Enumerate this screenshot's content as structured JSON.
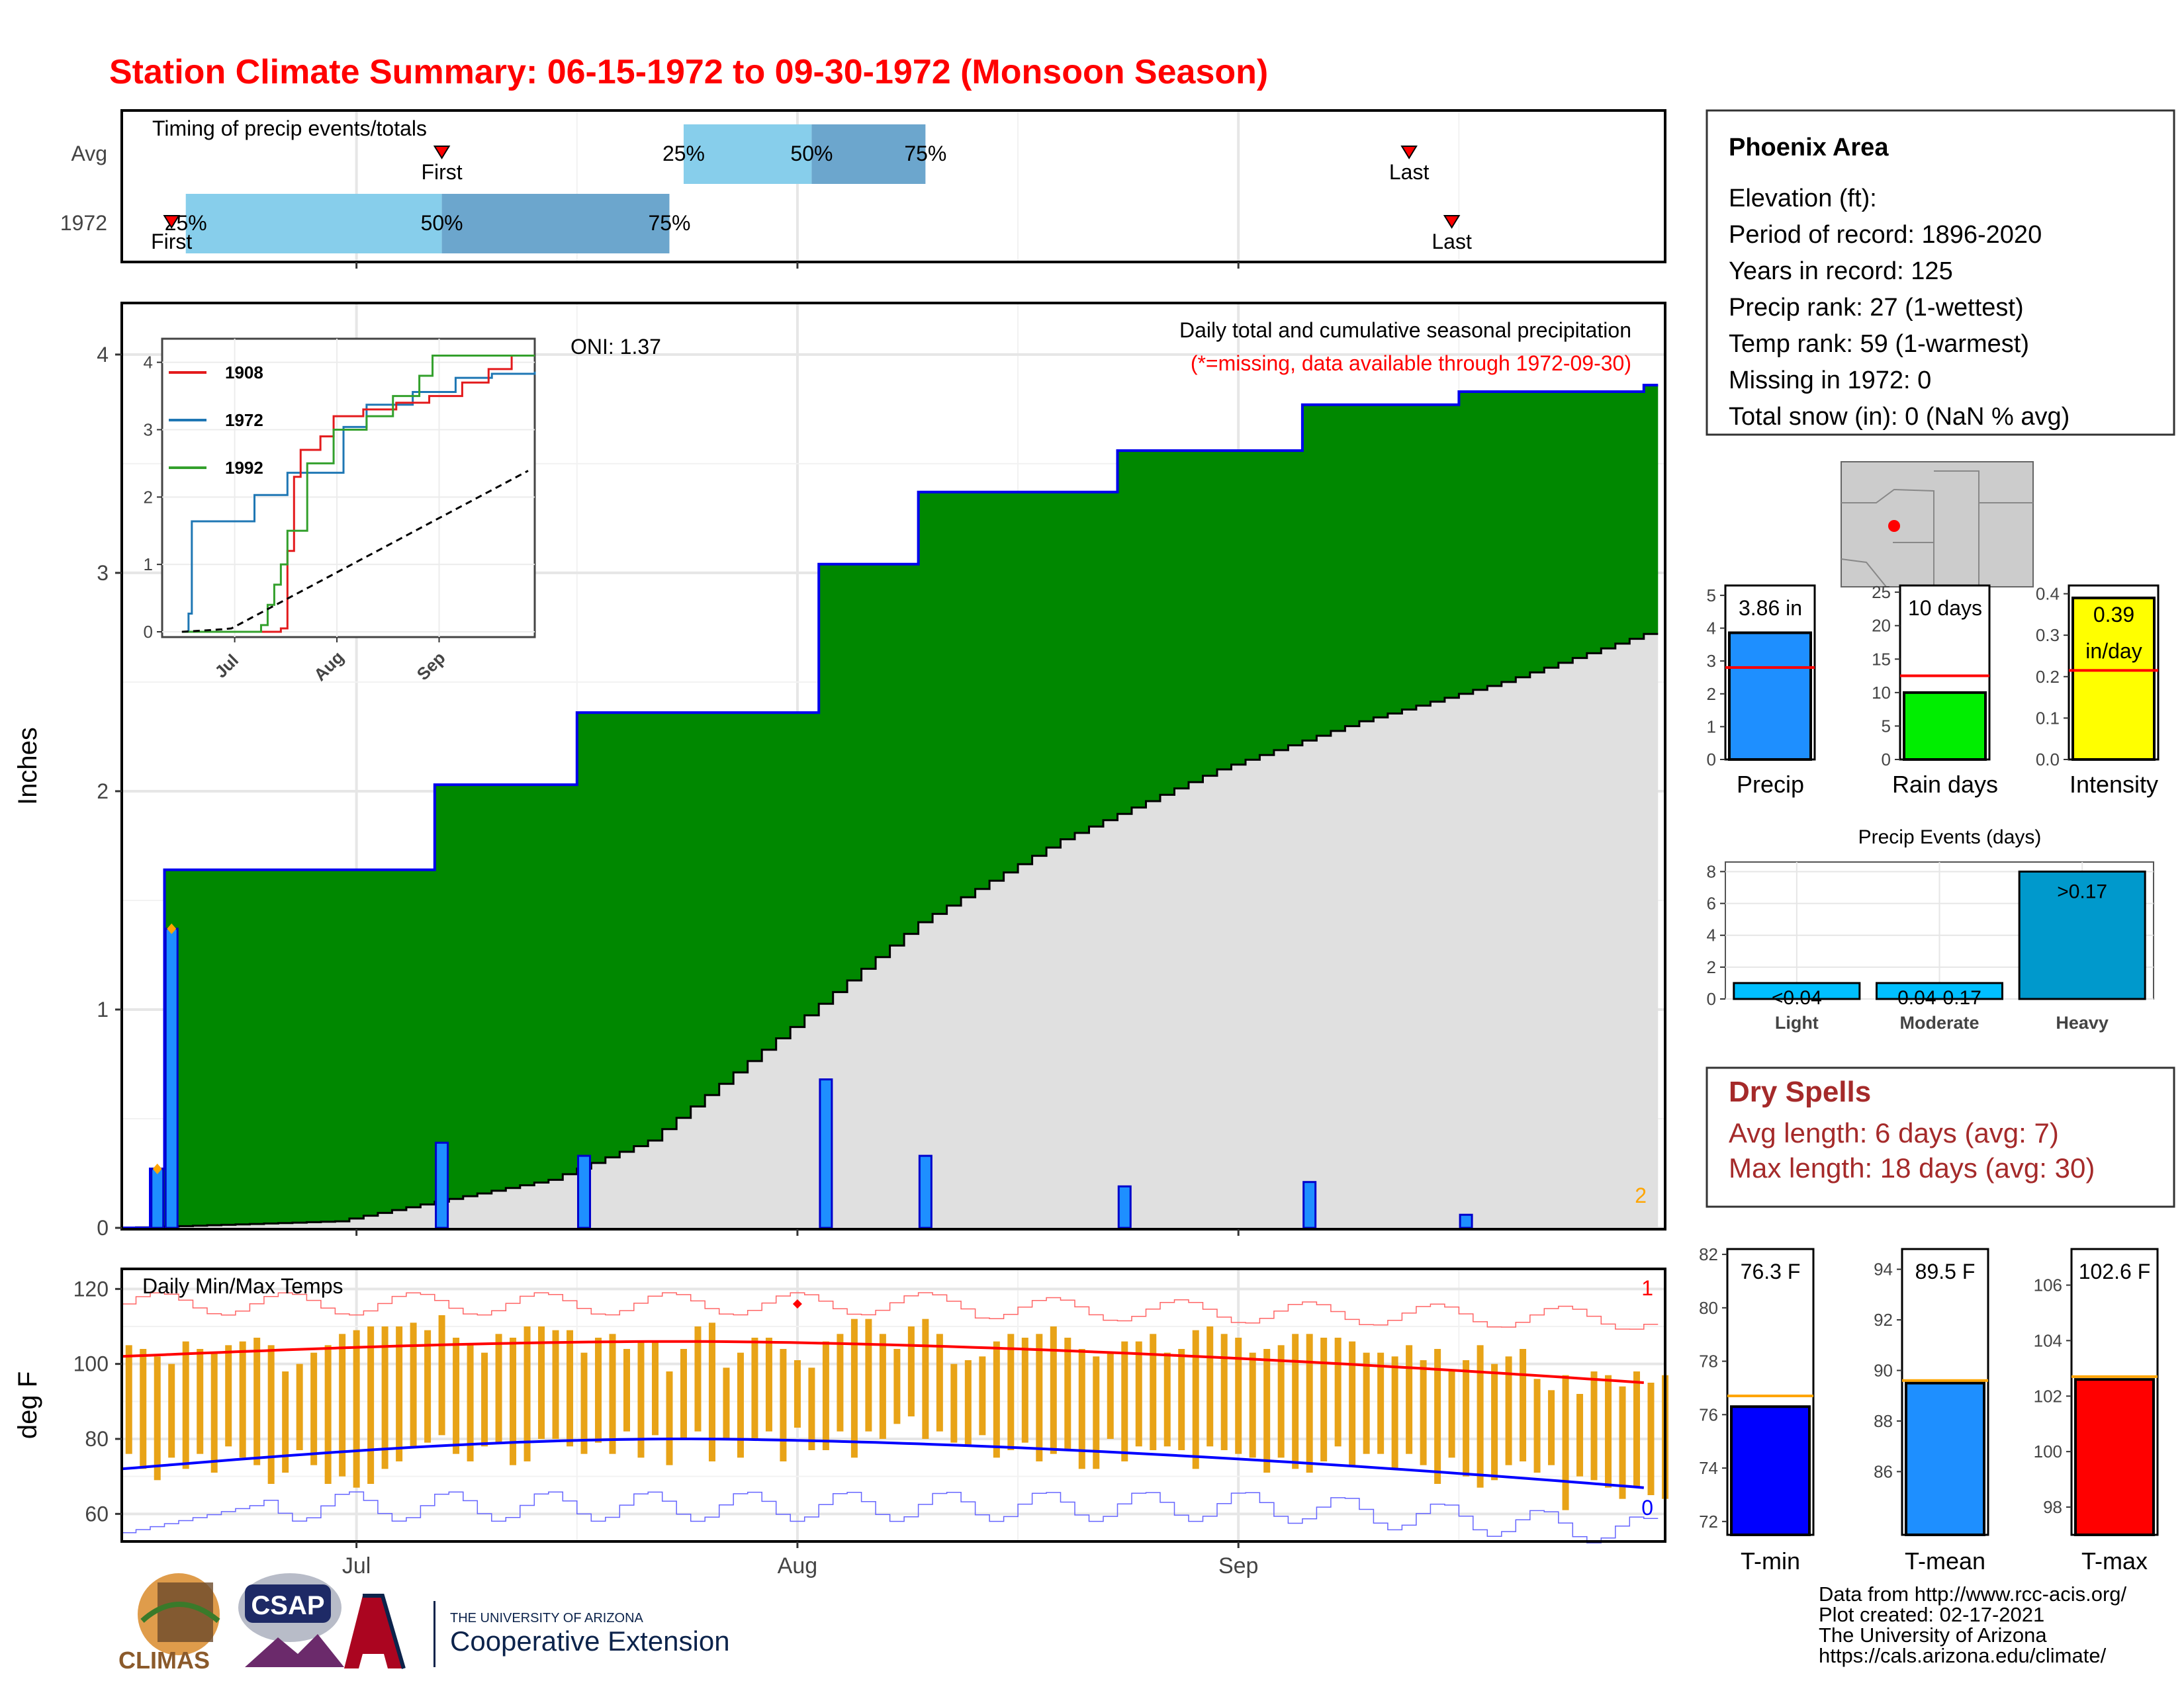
{
  "title": "Station Climate Summary: 06-15-1972 to 09-30-1972 (Monsoon Season)",
  "colors": {
    "title_red": "#ff0000",
    "green_fill": "#008800",
    "blue_line": "#0000ee",
    "bar_blue": "#1e8fff",
    "light_blue": "#87ceeb",
    "mid_blue": "#6ca6cd",
    "gray_fill": "#e0e0e0",
    "orange": "#ffa500",
    "gold_bar": "#e8a317",
    "yellow": "#ffff00",
    "green_bar": "#00ee00",
    "teal_bar": "#0099cc",
    "cyan_bar": "#00bfff",
    "dark_red_text": "#a52a2a"
  },
  "timing": {
    "title": "Timing of precip events/totals",
    "row_labels": [
      "Avg",
      "1972"
    ],
    "avg": {
      "first": "07-07",
      "p25": "07-24",
      "p50": "08-02",
      "p75": "08-10",
      "last": "09-13"
    },
    "year": {
      "first": "06-18",
      "p25": "06-19",
      "p50": "07-07",
      "p75": "07-23",
      "last": "09-16"
    },
    "labels": {
      "first": "First",
      "last": "Last",
      "p25": "25%",
      "p50": "50%",
      "p75": "75%"
    }
  },
  "main_chart": {
    "ylabel": "Inches",
    "subtitle1": "Daily total and cumulative seasonal precipitation",
    "subtitle2": "(*=missing, data available through 1972-09-30)",
    "oni": "ONI: 1.37",
    "count_label": "2",
    "yticks": [
      "0",
      "1",
      "2",
      "3",
      "4"
    ],
    "xticks": [
      "Jul",
      "Aug",
      "Sep"
    ]
  },
  "inset": {
    "legend": [
      "1908",
      "1972",
      "1992"
    ],
    "yticks": [
      "0",
      "1",
      "2",
      "3",
      "4"
    ],
    "xticks": [
      "Jul",
      "Aug",
      "Sep"
    ]
  },
  "temp_chart": {
    "ylabel": "deg F",
    "title": "Daily Min/Max Temps",
    "yticks": [
      "60",
      "80",
      "100",
      "120"
    ],
    "count_high": "1",
    "count_low": "0"
  },
  "info_box": {
    "name": "Phoenix Area",
    "lines": [
      "Elevation (ft):",
      "Period of record: 1896-2020",
      "Years in record: 125",
      "Precip rank: 27 (1-wettest)",
      "Temp rank: 59 (1-warmest)",
      "Missing in 1972: 0",
      "Total snow (in): 0 (NaN % avg)"
    ]
  },
  "mini_bars": [
    {
      "label": "Precip",
      "value_text": "3.86 in",
      "value": 3.86,
      "avg": 2.8,
      "ymax": 5.3,
      "yticks": [
        "0",
        "1",
        "2",
        "3",
        "4",
        "5"
      ],
      "tickvals": [
        0,
        1,
        2,
        3,
        4,
        5
      ],
      "color": "#1e8fff"
    },
    {
      "label": "Rain days",
      "value_text": "10 days",
      "value": 10,
      "avg": 12.5,
      "ymax": 26,
      "yticks": [
        "0",
        "5",
        "10",
        "15",
        "20",
        "25"
      ],
      "tickvals": [
        0,
        5,
        10,
        15,
        20,
        25
      ],
      "color": "#00ee00"
    },
    {
      "label": "Intensity",
      "value_text": "0.39 in/day",
      "value_line1": "0.39",
      "value_line2": "in/day",
      "value": 0.39,
      "avg": 0.215,
      "ymax": 0.42,
      "yticks": [
        "0.0",
        "0.1",
        "0.2",
        "0.3",
        "0.4"
      ],
      "tickvals": [
        0,
        0.1,
        0.2,
        0.3,
        0.4
      ],
      "color": "#ffff00"
    }
  ],
  "precip_events": {
    "title": "Precip Events (days)",
    "categories": [
      "Light",
      "Moderate",
      "Heavy"
    ],
    "values": [
      1,
      1,
      8
    ],
    "labels": [
      "<0.04",
      "0.04-0.17",
      ">0.17"
    ],
    "yticks": [
      "0",
      "2",
      "4",
      "6",
      "8"
    ]
  },
  "dry_spells": {
    "title": "Dry Spells",
    "avg_line": "Avg length: 6 days (avg: 7)",
    "max_line": "Max length: 18 days (avg: 30)"
  },
  "temp_bars": [
    {
      "label": "T-min",
      "value_text": "76.3 F",
      "value": 76.3,
      "avg": 76.7,
      "ymin": 71.5,
      "ymax": 82.2,
      "tickvals": [
        72,
        74,
        76,
        78,
        80,
        82
      ],
      "yticks": [
        "72",
        "74",
        "76",
        "78",
        "80",
        "82"
      ],
      "color": "#0000ff"
    },
    {
      "label": "T-mean",
      "value_text": "89.5 F",
      "value": 89.5,
      "avg": 89.6,
      "ymin": 83.5,
      "ymax": 94.8,
      "tickvals": [
        86,
        88,
        90,
        92,
        94
      ],
      "yticks": [
        "86",
        "88",
        "90",
        "92",
        "94"
      ],
      "color": "#1e8fff"
    },
    {
      "label": "T-max",
      "value_text": "102.6 F",
      "value": 102.6,
      "avg": 102.7,
      "ymin": 97,
      "ymax": 107.3,
      "tickvals": [
        98,
        100,
        102,
        104,
        106
      ],
      "yticks": [
        "98",
        "100",
        "102",
        "104",
        "106"
      ],
      "color": "#ff0000"
    }
  ],
  "footer": {
    "lines": [
      "Data from http://www.rcc-acis.org/",
      "Plot created: 02-17-2021",
      "The University of Arizona",
      "https://cals.arizona.edu/climate/"
    ],
    "logo_climas": "CLIMAS",
    "logo_csap": "CSAP",
    "logo_ua_small": "THE UNIVERSITY OF ARIZONA",
    "logo_ua_big": "Cooperative Extension"
  },
  "chart_data": {
    "type": "bar",
    "title": "Daily total and cumulative seasonal precipitation",
    "ylabel": "Inches",
    "ylim": [
      0,
      4.2
    ],
    "xlim": [
      "1972-06-15",
      "1972-09-30"
    ],
    "series": [
      {
        "name": "Daily total",
        "x": [
          "1972-06-17",
          "1972-06-18",
          "1972-07-07",
          "1972-07-17",
          "1972-08-03",
          "1972-08-10",
          "1972-08-24",
          "1972-09-06",
          "1972-09-17"
        ],
        "values": [
          0.27,
          1.37,
          0.39,
          0.33,
          0.68,
          0.33,
          0.19,
          0.21,
          0.06
        ]
      },
      {
        "name": "1972 cumulative",
        "x": [
          "1972-06-15",
          "1972-06-17",
          "1972-06-18",
          "1972-07-07",
          "1972-07-17",
          "1972-08-03",
          "1972-08-10",
          "1972-08-24",
          "1972-09-06",
          "1972-09-17",
          "1972-09-30"
        ],
        "values": [
          0,
          0.27,
          1.64,
          2.03,
          2.36,
          3.04,
          3.37,
          3.56,
          3.77,
          3.83,
          3.86
        ]
      },
      {
        "name": "Average cumulative",
        "x": [
          "1972-06-15",
          "1972-06-30",
          "1972-07-07",
          "1972-07-15",
          "1972-07-22",
          "1972-08-01",
          "1972-08-10",
          "1972-08-20",
          "1972-08-31",
          "1972-09-10",
          "1972-09-20",
          "1972-09-30"
        ],
        "values": [
          0,
          0.03,
          0.12,
          0.22,
          0.4,
          0.92,
          1.4,
          1.78,
          2.1,
          2.32,
          2.5,
          2.72
        ]
      }
    ],
    "temps": {
      "ylim": [
        53,
        125
      ],
      "daily_max": [
        105,
        104,
        102,
        100,
        106,
        104,
        103,
        105,
        106,
        107,
        105,
        98,
        100,
        103,
        105,
        108,
        109,
        110,
        110,
        110,
        111,
        109,
        113,
        107,
        105,
        103,
        108,
        107,
        110,
        110,
        109,
        109,
        103,
        107,
        108,
        104,
        106,
        106,
        98,
        104,
        110,
        111,
        99,
        103,
        107,
        107,
        104,
        101,
        99,
        106,
        108,
        112,
        112,
        108,
        104,
        110,
        112,
        108,
        100,
        101,
        102,
        106,
        108,
        107,
        108,
        110,
        107,
        104,
        102,
        103,
        106,
        106,
        108,
        103,
        104,
        109,
        110,
        108,
        107,
        103,
        104,
        105,
        108,
        108,
        107,
        107,
        106,
        103,
        103,
        102,
        105,
        101,
        104,
        98,
        101,
        105,
        100,
        102,
        104,
        96,
        93,
        97,
        92,
        98,
        97,
        94,
        98,
        95,
        97
      ],
      "daily_min": [
        76,
        72,
        69,
        75,
        72,
        76,
        71,
        78,
        75,
        73,
        68,
        71,
        77,
        73,
        68,
        70,
        67,
        68,
        72,
        74,
        78,
        79,
        81,
        76,
        74,
        78,
        79,
        73,
        74,
        80,
        80,
        78,
        76,
        79,
        76,
        82,
        75,
        81,
        73,
        80,
        82,
        74,
        80,
        75,
        80,
        82,
        74,
        83,
        77,
        77,
        82,
        75,
        82,
        80,
        84,
        86,
        80,
        82,
        79,
        78,
        81,
        75,
        77,
        79,
        74,
        76,
        77,
        72,
        72,
        80,
        74,
        78,
        77,
        78,
        77,
        72,
        78,
        77,
        76,
        75,
        71,
        75,
        72,
        71,
        74,
        78,
        73,
        76,
        76,
        72,
        76,
        73,
        68,
        75,
        70,
        67,
        69,
        73,
        74,
        71,
        73,
        61,
        70,
        69,
        67,
        64,
        67,
        65,
        64
      ],
      "avg_max_start": 102,
      "avg_max_peak": 106,
      "avg_max_end": 95,
      "avg_min_start": 72,
      "avg_min_peak": 80,
      "avg_min_end": 67
    }
  }
}
